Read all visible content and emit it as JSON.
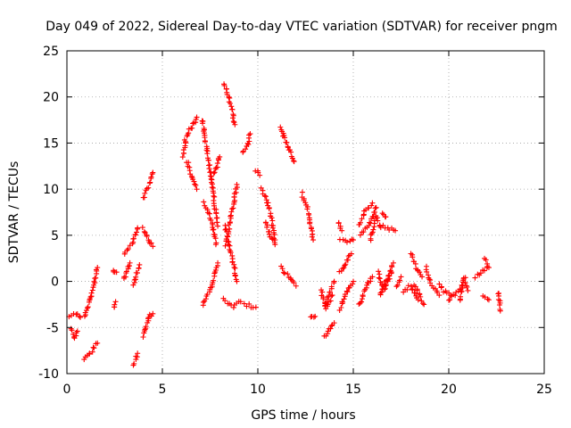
{
  "chart_data": {
    "type": "scatter",
    "title": "Day 049 of 2022, Sidereal Day-to-day VTEC variation (SDTVAR) for receiver pngm",
    "xlabel": "GPS time / hours",
    "ylabel": "SDTVAR / TECUs",
    "xlim": [
      0,
      25
    ],
    "ylim": [
      -10,
      25
    ],
    "xticks": [
      "0",
      "5",
      "10",
      "15",
      "20",
      "25"
    ],
    "yticks": [
      "-10",
      "-5",
      "0",
      "5",
      "10",
      "15",
      "20",
      "25"
    ],
    "grid": true,
    "marker": "+",
    "color": "#ff0000",
    "series": [
      {
        "name": "SDTVAR",
        "tracks": [
          [
            [
              0.15,
              -3.8
            ],
            [
              0.5,
              -3.5
            ],
            [
              0.7,
              -3.9
            ]
          ],
          [
            [
              0.2,
              -5.2
            ],
            [
              0.4,
              -6.2
            ],
            [
              0.55,
              -5.4
            ]
          ],
          [
            [
              0.9,
              -8.3
            ],
            [
              1.3,
              -7.5
            ],
            [
              1.6,
              -6.7
            ]
          ],
          [
            [
              0.9,
              -3.8
            ],
            [
              1.3,
              -1.5
            ],
            [
              1.6,
              1.5
            ]
          ],
          [
            [
              2.45,
              -2.8
            ],
            [
              2.55,
              -2.2
            ]
          ],
          [
            [
              2.4,
              1.2
            ],
            [
              2.6,
              1.0
            ]
          ],
          [
            [
              3.0,
              0.2
            ],
            [
              3.3,
              2.0
            ]
          ],
          [
            [
              3.0,
              3.0
            ],
            [
              3.4,
              4.0
            ],
            [
              3.7,
              5.8
            ]
          ],
          [
            [
              3.5,
              -9.0
            ],
            [
              3.7,
              -7.8
            ]
          ],
          [
            [
              3.5,
              -0.5
            ],
            [
              3.8,
              1.8
            ]
          ],
          [
            [
              4.0,
              -6.0
            ],
            [
              4.3,
              -3.8
            ],
            [
              4.5,
              -3.5
            ]
          ],
          [
            [
              4.0,
              5.8
            ],
            [
              4.2,
              4.8
            ],
            [
              4.5,
              3.8
            ]
          ],
          [
            [
              4.0,
              9.0
            ],
            [
              4.3,
              10.5
            ],
            [
              4.5,
              11.8
            ]
          ],
          [
            [
              6.1,
              13.5
            ],
            [
              6.2,
              15.5
            ],
            [
              6.6,
              17.0
            ],
            [
              6.8,
              17.8
            ]
          ],
          [
            [
              6.3,
              13.0
            ],
            [
              6.5,
              11.5
            ],
            [
              6.8,
              10.0
            ]
          ],
          [
            [
              7.1,
              17.5
            ],
            [
              7.5,
              12.0
            ],
            [
              7.9,
              6.0
            ]
          ],
          [
            [
              7.1,
              -2.5
            ],
            [
              7.5,
              -1.0
            ],
            [
              7.9,
              2.0
            ]
          ],
          [
            [
              7.2,
              8.5
            ],
            [
              7.6,
              6.5
            ],
            [
              7.8,
              4.0
            ]
          ],
          [
            [
              7.6,
              11.5
            ],
            [
              7.9,
              12.5
            ],
            [
              8.0,
              13.5
            ]
          ],
          [
            [
              8.2,
              -2.0
            ],
            [
              8.7,
              -2.8
            ],
            [
              9.1,
              -2.2
            ]
          ],
          [
            [
              8.25,
              21.5
            ],
            [
              8.6,
              19.0
            ],
            [
              8.8,
              17.0
            ]
          ],
          [
            [
              8.3,
              4.0
            ],
            [
              8.6,
              7.0
            ],
            [
              8.9,
              10.5
            ]
          ],
          [
            [
              8.3,
              6.0
            ],
            [
              8.6,
              3.0
            ],
            [
              8.9,
              0.0
            ]
          ],
          [
            [
              9.2,
              14.0
            ],
            [
              9.5,
              15.0
            ],
            [
              9.6,
              16.0
            ]
          ],
          [
            [
              9.3,
              -2.5
            ],
            [
              9.9,
              -2.8
            ]
          ],
          [
            [
              9.9,
              12.0
            ],
            [
              10.1,
              11.5
            ]
          ],
          [
            [
              10.2,
              10.0
            ],
            [
              10.6,
              8.0
            ],
            [
              10.9,
              4.5
            ]
          ],
          [
            [
              10.4,
              6.5
            ],
            [
              10.6,
              5.0
            ],
            [
              10.9,
              4.0
            ]
          ],
          [
            [
              11.2,
              16.8
            ],
            [
              11.5,
              15.0
            ],
            [
              11.9,
              13.0
            ]
          ],
          [
            [
              11.2,
              1.5
            ],
            [
              11.6,
              0.5
            ],
            [
              12.0,
              -0.5
            ]
          ],
          [
            [
              12.3,
              9.5
            ],
            [
              12.6,
              8.0
            ],
            [
              12.9,
              4.5
            ]
          ],
          [
            [
              12.8,
              -4.0
            ],
            [
              13.0,
              -3.8
            ]
          ],
          [
            [
              13.3,
              -1.0
            ],
            [
              13.6,
              -3.0
            ],
            [
              13.9,
              -1.5
            ]
          ],
          [
            [
              13.5,
              -2.5
            ],
            [
              13.8,
              -1.0
            ],
            [
              14.0,
              0.0
            ]
          ],
          [
            [
              13.5,
              -6.0
            ],
            [
              13.8,
              -5.0
            ],
            [
              14.0,
              -4.5
            ]
          ],
          [
            [
              14.2,
              6.5
            ],
            [
              14.4,
              5.5
            ]
          ],
          [
            [
              14.3,
              -3.0
            ],
            [
              14.7,
              -1.0
            ],
            [
              15.0,
              0.0
            ]
          ],
          [
            [
              14.3,
              4.5
            ],
            [
              14.7,
              4.3
            ],
            [
              15.0,
              4.5
            ]
          ],
          [
            [
              14.3,
              1.0
            ],
            [
              14.6,
              2.0
            ],
            [
              14.9,
              3.0
            ]
          ],
          [
            [
              15.3,
              -2.5
            ],
            [
              15.7,
              -0.5
            ],
            [
              16.0,
              0.5
            ]
          ],
          [
            [
              15.3,
              6.0
            ],
            [
              15.6,
              7.5
            ],
            [
              16.0,
              8.5
            ]
          ],
          [
            [
              15.4,
              5.0
            ],
            [
              15.8,
              6.0
            ],
            [
              16.2,
              8.0
            ]
          ],
          [
            [
              15.9,
              4.5
            ],
            [
              16.2,
              7.0
            ],
            [
              16.4,
              6.0
            ]
          ],
          [
            [
              16.3,
              1.0
            ],
            [
              16.6,
              -1.0
            ],
            [
              17.0,
              1.0
            ]
          ],
          [
            [
              16.4,
              6.0
            ],
            [
              16.8,
              5.8
            ],
            [
              17.2,
              5.5
            ]
          ],
          [
            [
              16.4,
              -1.5
            ],
            [
              16.8,
              0.5
            ],
            [
              17.1,
              2.0
            ]
          ],
          [
            [
              16.5,
              7.5
            ],
            [
              16.7,
              7.0
            ]
          ],
          [
            [
              17.3,
              -0.5
            ],
            [
              17.5,
              0.5
            ]
          ],
          [
            [
              17.6,
              -1.0
            ],
            [
              18.0,
              -0.5
            ],
            [
              18.4,
              -2.0
            ]
          ],
          [
            [
              18.0,
              3.0
            ],
            [
              18.3,
              1.5
            ],
            [
              18.6,
              0.5
            ]
          ],
          [
            [
              18.2,
              -0.5
            ],
            [
              18.5,
              -1.5
            ],
            [
              18.7,
              -2.5
            ]
          ],
          [
            [
              18.8,
              1.5
            ],
            [
              19.1,
              -0.5
            ],
            [
              19.5,
              -1.5
            ]
          ],
          [
            [
              19.5,
              -0.3
            ],
            [
              19.8,
              -1.2
            ],
            [
              20.1,
              -1.5
            ]
          ],
          [
            [
              20.0,
              -2.0
            ],
            [
              20.4,
              -1.2
            ],
            [
              20.7,
              -0.5
            ]
          ],
          [
            [
              20.6,
              -2.0
            ],
            [
              20.8,
              0.5
            ],
            [
              21.0,
              -1.0
            ]
          ],
          [
            [
              21.4,
              0.5
            ],
            [
              21.7,
              1.0
            ],
            [
              22.0,
              1.5
            ]
          ],
          [
            [
              21.8,
              -1.5
            ],
            [
              22.1,
              -2.0
            ]
          ],
          [
            [
              21.9,
              2.5
            ],
            [
              22.1,
              1.5
            ]
          ],
          [
            [
              22.6,
              -1.2
            ],
            [
              22.7,
              -3.2
            ]
          ]
        ]
      }
    ]
  }
}
